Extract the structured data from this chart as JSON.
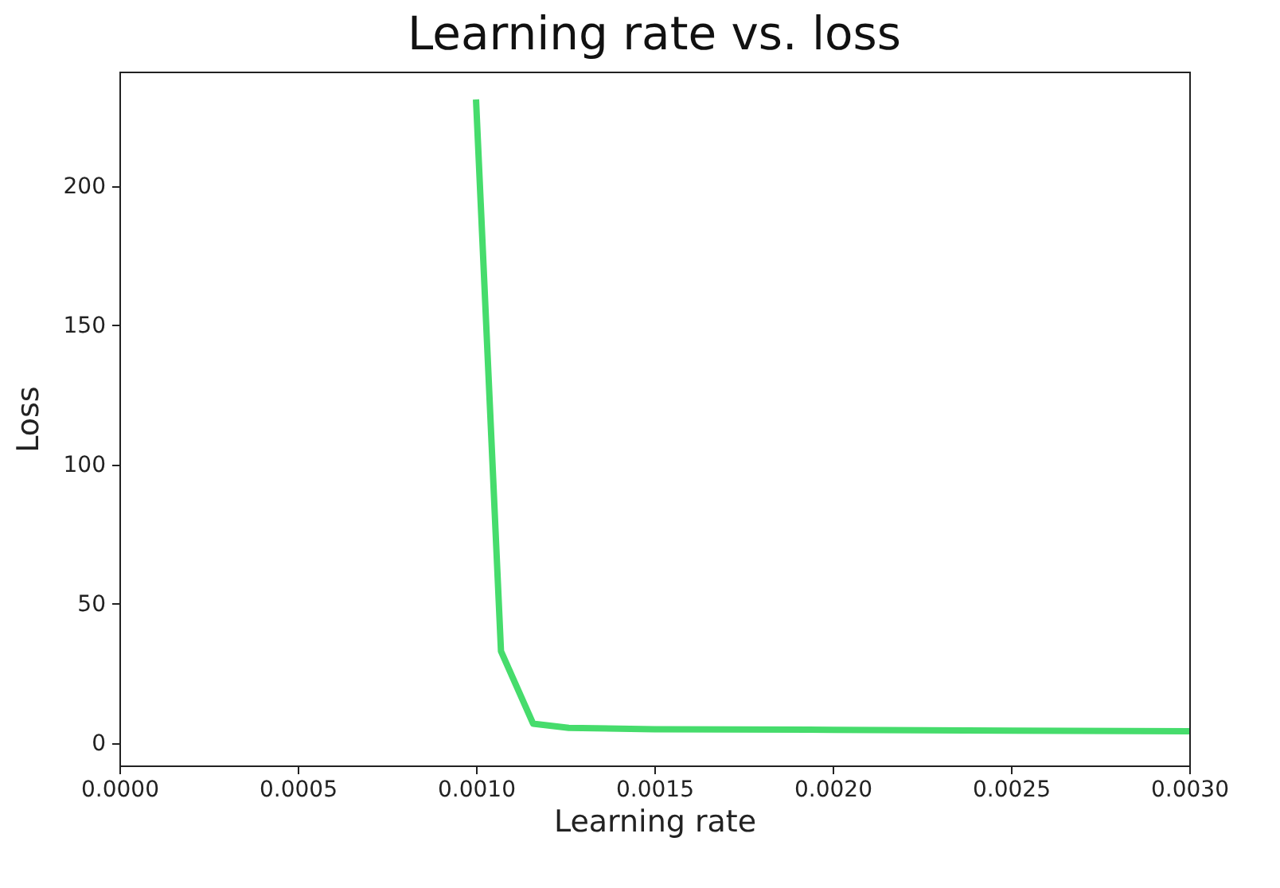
{
  "chart_data": {
    "type": "line",
    "title": "Learning rate vs. loss",
    "xlabel": "Learning rate",
    "ylabel": "Loss",
    "xlim": [
      0,
      0.003
    ],
    "ylim": [
      -8,
      241
    ],
    "xticks": [
      {
        "value": 0,
        "label": "0.0000"
      },
      {
        "value": 0.0005,
        "label": "0.0005"
      },
      {
        "value": 0.001,
        "label": "0.0010"
      },
      {
        "value": 0.0015,
        "label": "0.0015"
      },
      {
        "value": 0.002,
        "label": "0.0020"
      },
      {
        "value": 0.0025,
        "label": "0.0025"
      },
      {
        "value": 0.003,
        "label": "0.0030"
      }
    ],
    "yticks": [
      0,
      50,
      100,
      150,
      200
    ],
    "grid": false,
    "legend": false,
    "series": [
      {
        "color": "#46dc6c",
        "x": [
          0.001,
          0.00107,
          0.00116,
          0.00126,
          0.0015,
          0.002,
          0.0025,
          0.003
        ],
        "values": [
          231,
          33,
          7,
          5.5,
          5,
          4.8,
          4.5,
          4.3
        ]
      }
    ]
  }
}
